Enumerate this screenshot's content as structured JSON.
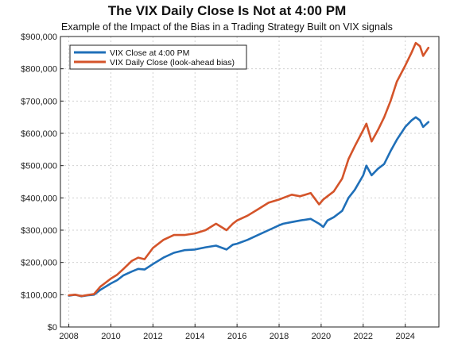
{
  "chart_data": {
    "type": "line",
    "title": "The VIX Daily Close Is Not at 4:00 PM",
    "subtitle": "Example of the Impact of the Bias in a Trading Strategy Built on VIX signals",
    "xlabel": "",
    "ylabel": "",
    "xlim": [
      2007.6,
      2025.6
    ],
    "ylim": [
      0,
      900000
    ],
    "x_ticks": [
      2008,
      2010,
      2012,
      2014,
      2016,
      2018,
      2020,
      2022,
      2024
    ],
    "x_tick_labels": [
      "2008",
      "2010",
      "2012",
      "2014",
      "2016",
      "2018",
      "2020",
      "2022",
      "2024"
    ],
    "y_ticks": [
      0,
      100000,
      200000,
      300000,
      400000,
      500000,
      600000,
      700000,
      800000,
      900000
    ],
    "y_tick_labels": [
      "$0",
      "$100,000",
      "$200,000",
      "$300,000",
      "$400,000",
      "$500,000",
      "$600,000",
      "$700,000",
      "$800,000",
      "$900,000"
    ],
    "grid": true,
    "legend_position": "top-left",
    "series": [
      {
        "name": "VIX Close at 4:00 PM",
        "color": "#1f6fb8",
        "x": [
          2008.0,
          2008.3,
          2008.6,
          2008.9,
          2009.2,
          2009.5,
          2010.0,
          2010.3,
          2010.6,
          2011.0,
          2011.3,
          2011.6,
          2012.0,
          2012.5,
          2013.0,
          2013.5,
          2014.0,
          2014.5,
          2015.0,
          2015.5,
          2015.8,
          2016.0,
          2016.5,
          2017.0,
          2017.5,
          2018.0,
          2018.2,
          2018.6,
          2019.0,
          2019.5,
          2019.9,
          2020.1,
          2020.3,
          2020.6,
          2021.0,
          2021.3,
          2021.6,
          2022.0,
          2022.15,
          2022.4,
          2022.7,
          2023.0,
          2023.3,
          2023.6,
          2024.0,
          2024.3,
          2024.5,
          2024.7,
          2024.85,
          2025.1
        ],
        "values": [
          97000,
          100000,
          95000,
          98000,
          100000,
          115000,
          135000,
          145000,
          160000,
          172000,
          180000,
          178000,
          195000,
          215000,
          230000,
          238000,
          240000,
          247000,
          252000,
          240000,
          255000,
          258000,
          270000,
          285000,
          300000,
          315000,
          320000,
          325000,
          330000,
          335000,
          320000,
          310000,
          330000,
          340000,
          360000,
          400000,
          425000,
          470000,
          500000,
          470000,
          490000,
          505000,
          545000,
          580000,
          620000,
          640000,
          650000,
          640000,
          620000,
          635000
        ]
      },
      {
        "name": "VIX Daily Close (look-ahead bias)",
        "color": "#d4542a",
        "x": [
          2008.0,
          2008.3,
          2008.6,
          2008.9,
          2009.2,
          2009.5,
          2010.0,
          2010.3,
          2010.6,
          2011.0,
          2011.3,
          2011.6,
          2012.0,
          2012.5,
          2013.0,
          2013.5,
          2014.0,
          2014.5,
          2015.0,
          2015.5,
          2015.8,
          2016.0,
          2016.5,
          2017.0,
          2017.5,
          2018.0,
          2018.2,
          2018.6,
          2019.0,
          2019.5,
          2019.9,
          2020.1,
          2020.3,
          2020.6,
          2021.0,
          2021.3,
          2021.6,
          2022.0,
          2022.15,
          2022.4,
          2022.7,
          2023.0,
          2023.3,
          2023.6,
          2024.0,
          2024.3,
          2024.5,
          2024.7,
          2024.85,
          2025.1
        ],
        "values": [
          98000,
          100000,
          96000,
          99000,
          102000,
          125000,
          150000,
          162000,
          180000,
          205000,
          215000,
          210000,
          245000,
          270000,
          285000,
          285000,
          290000,
          300000,
          320000,
          300000,
          320000,
          330000,
          345000,
          365000,
          385000,
          395000,
          400000,
          410000,
          405000,
          415000,
          380000,
          395000,
          405000,
          420000,
          460000,
          520000,
          560000,
          610000,
          630000,
          575000,
          610000,
          650000,
          700000,
          760000,
          810000,
          850000,
          880000,
          870000,
          840000,
          865000
        ]
      }
    ]
  }
}
